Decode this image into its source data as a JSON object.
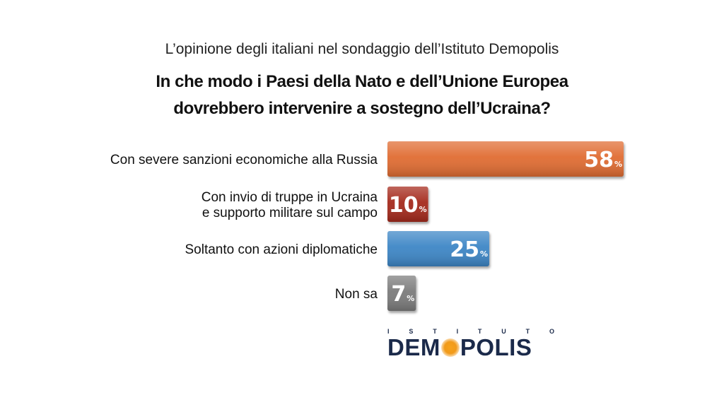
{
  "header": {
    "subtitle": "L’opinione degli italiani nel sondaggio dell’Istituto Demopolis",
    "title_line1": "In che modo i Paesi della Nato e dell’Unione Europea",
    "title_line2": "dovrebbero intervenire a sostegno dell’Ucraina?"
  },
  "chart_data": {
    "type": "bar",
    "orientation": "horizontal",
    "title": "In che modo i Paesi della Nato e dell’Unione Europea dovrebbero intervenire a sostegno dell’Ucraina?",
    "categories": [
      [
        "Con severe sanzioni economiche alla Russia"
      ],
      [
        "Con invio di truppe in Ucraina",
        "e supporto militare sul campo"
      ],
      [
        "Soltanto con azioni diplomatiche"
      ],
      [
        "Non sa"
      ]
    ],
    "values": [
      58,
      10,
      25,
      7
    ],
    "unit": "%",
    "colors": [
      "#e06c32",
      "#a52b1e",
      "#3e86c6",
      "#7c7c7c"
    ],
    "xlim": [
      0,
      58
    ],
    "grid": false
  },
  "logo": {
    "top_text": [
      "I",
      "S",
      "T",
      "I",
      "T",
      "U",
      "T",
      "O"
    ],
    "main_before": "DEM",
    "main_after": "POLIS"
  }
}
